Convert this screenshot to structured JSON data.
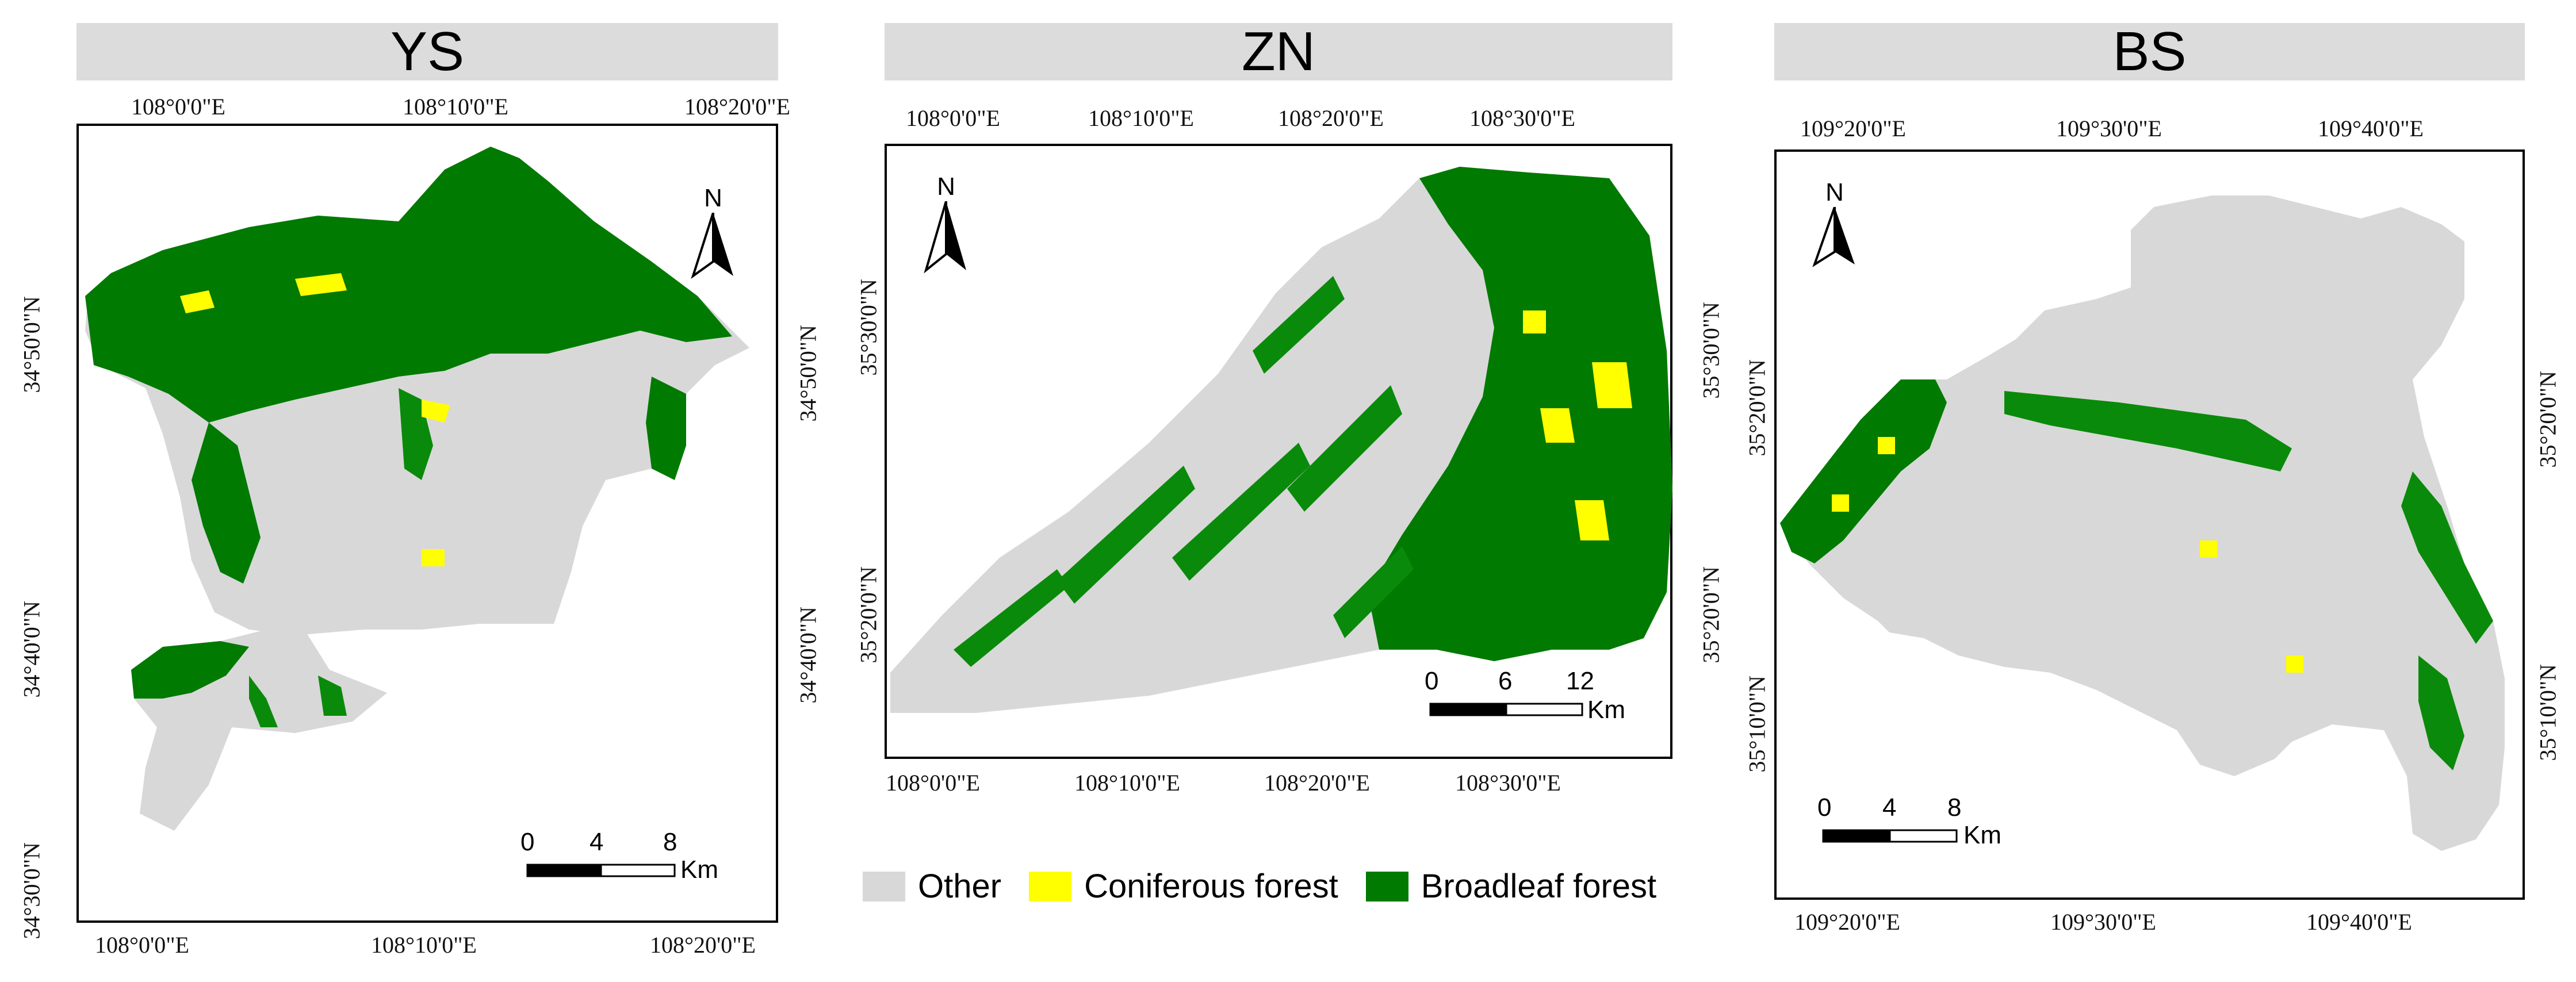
{
  "legend": {
    "items": [
      {
        "label": "Other",
        "color": "#d8d8d8"
      },
      {
        "label": "Coniferous forest",
        "color": "#ffff00"
      },
      {
        "label": "Broadleaf forest",
        "color": "#007a00"
      }
    ]
  },
  "panels": [
    {
      "title": "YS",
      "north_label": "N",
      "top_ticks": [
        "108°0'0\"E",
        "108°10'0\"E",
        "108°20'0\"E"
      ],
      "bottom_ticks": [
        "108°0'0\"E",
        "108°10'0\"E",
        "108°20'0\"E"
      ],
      "left_ticks": [
        "34°50'0\"N",
        "34°40'0\"N",
        "34°30'0\"N"
      ],
      "right_ticks": [
        "34°50'0\"N",
        "34°40'0\"N"
      ],
      "scale": {
        "labels": [
          "0",
          "4",
          "8"
        ],
        "unit": "Km"
      }
    },
    {
      "title": "ZN",
      "north_label": "N",
      "top_ticks": [
        "108°0'0\"E",
        "108°10'0\"E",
        "108°20'0\"E",
        "108°30'0\"E"
      ],
      "bottom_ticks": [
        "108°0'0\"E",
        "108°10'0\"E",
        "108°20'0\"E",
        "108°30'0\"E"
      ],
      "left_ticks": [
        "35°30'0\"N",
        "35°20'0\"N"
      ],
      "right_ticks": [
        "35°30'0\"N",
        "35°20'0\"N"
      ],
      "scale": {
        "labels": [
          "0",
          "6",
          "12"
        ],
        "unit": "Km"
      }
    },
    {
      "title": "BS",
      "north_label": "N",
      "top_ticks": [
        "109°20'0\"E",
        "109°30'0\"E",
        "109°40'0\"E"
      ],
      "bottom_ticks": [
        "109°20'0\"E",
        "109°30'0\"E",
        "109°40'0\"E"
      ],
      "left_ticks": [
        "35°20'0\"N",
        "35°10'0\"N"
      ],
      "right_ticks": [
        "35°20'0\"N",
        "35°10'0\"N"
      ],
      "scale": {
        "labels": [
          "0",
          "4",
          "8"
        ],
        "unit": "Km"
      }
    }
  ]
}
